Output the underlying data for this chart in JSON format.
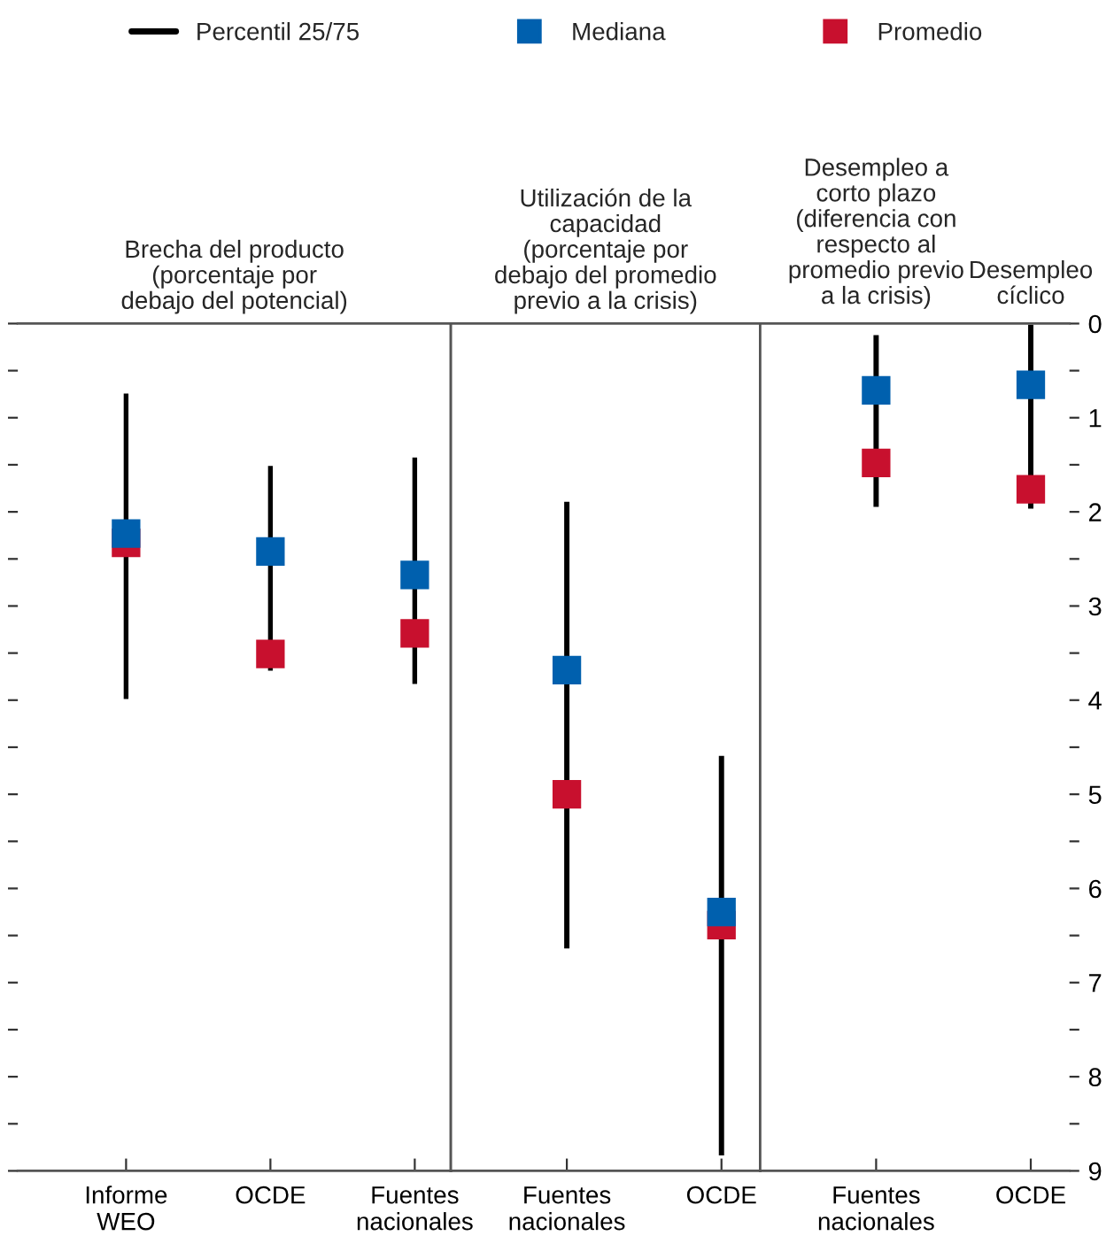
{
  "chart_data": [
    {
      "type": "scatter",
      "title": "Brecha del producto\n(porcentaje por\ndebajo del potencial)",
      "categories": [
        "Informe\nWEO",
        "OCDE",
        "Fuentes\nnacionales"
      ],
      "ylim": [
        9,
        0
      ],
      "yticks": [
        0,
        {
          "value": 0.5,
          "label": null
        },
        1,
        {
          "value": 1.5,
          "label": null
        },
        2,
        {
          "value": 2.5,
          "label": null
        },
        3,
        {
          "value": 3.5,
          "label": null
        },
        4,
        {
          "value": 4.5,
          "label": null
        },
        5,
        {
          "value": 5.5,
          "label": null
        },
        6,
        {
          "value": 6.5,
          "label": null
        },
        7,
        {
          "value": 7.5,
          "label": null
        },
        8,
        {
          "value": 8.5,
          "label": null
        },
        9
      ],
      "tick_labels": "x",
      "legend": "top",
      "marker": "square",
      "series": [
        {
          "name": "Percentil 25/75",
          "type": "bar",
          "color": "#000000",
          "base": [
            0.73,
            1.5,
            1.41
          ],
          "values": [
            3.27,
            2.2,
            2.43
          ]
        },
        {
          "name": "Mediana",
          "color": "#0060ae",
          "values": [
            2.23,
            2.42,
            2.67
          ]
        },
        {
          "name": "Promedio",
          "color": "#c8102e",
          "values": [
            2.33,
            3.51,
            3.29
          ]
        }
      ]
    },
    {
      "type": "scatter",
      "title": "Utilización de la\ncapacidad\n(porcentaje por\ndebajo del promedio\nprevio a la crisis)",
      "categories": [
        "Fuentes\nnacionales",
        "OCDE"
      ],
      "ylim": [
        9,
        0
      ],
      "tick_labels": "x",
      "marker": "square",
      "series": [
        {
          "type": "bar",
          "color": "#000000",
          "base": [
            1.88,
            4.58
          ],
          "values": [
            4.77,
            4.27
          ]
        },
        {
          "color": "#0060ae",
          "values": [
            3.68,
            6.25
          ]
        },
        {
          "color": "#c8102e",
          "values": [
            5.0,
            6.39
          ]
        }
      ]
    },
    {
      "type": "scatter",
      "categories": [
        "Fuentes\nnacionales",
        "OCDE"
      ],
      "ylim": [
        9,
        0
      ],
      "yticks": [
        0,
        {
          "value": 0.5,
          "label": null
        },
        1,
        {
          "value": 1.5,
          "label": null
        },
        2,
        {
          "value": 2.5,
          "label": null
        },
        3,
        {
          "value": 3.5,
          "label": null
        },
        4,
        {
          "value": 4.5,
          "label": null
        },
        5,
        {
          "value": 5.5,
          "label": null
        },
        6,
        {
          "value": 6.5,
          "label": null
        },
        7,
        {
          "value": 7.5,
          "label": null
        },
        8,
        {
          "value": 8.5,
          "label": null
        },
        9
      ],
      "marker": "square",
      "annotations": [
        "Desempleo a\ncorto plazo\n(diferencia con\nrespecto al\npromedio previo\na la crisis)",
        "Desempleo\ncíclico"
      ],
      "series": [
        {
          "type": "bar",
          "color": "#000000",
          "base": [
            0.11,
            0.0
          ],
          "values": [
            1.85,
            1.98
          ]
        },
        {
          "color": "#0060ae",
          "values": [
            0.71,
            0.65
          ]
        },
        {
          "color": "#c8102e",
          "values": [
            1.48,
            1.76
          ]
        }
      ]
    }
  ]
}
